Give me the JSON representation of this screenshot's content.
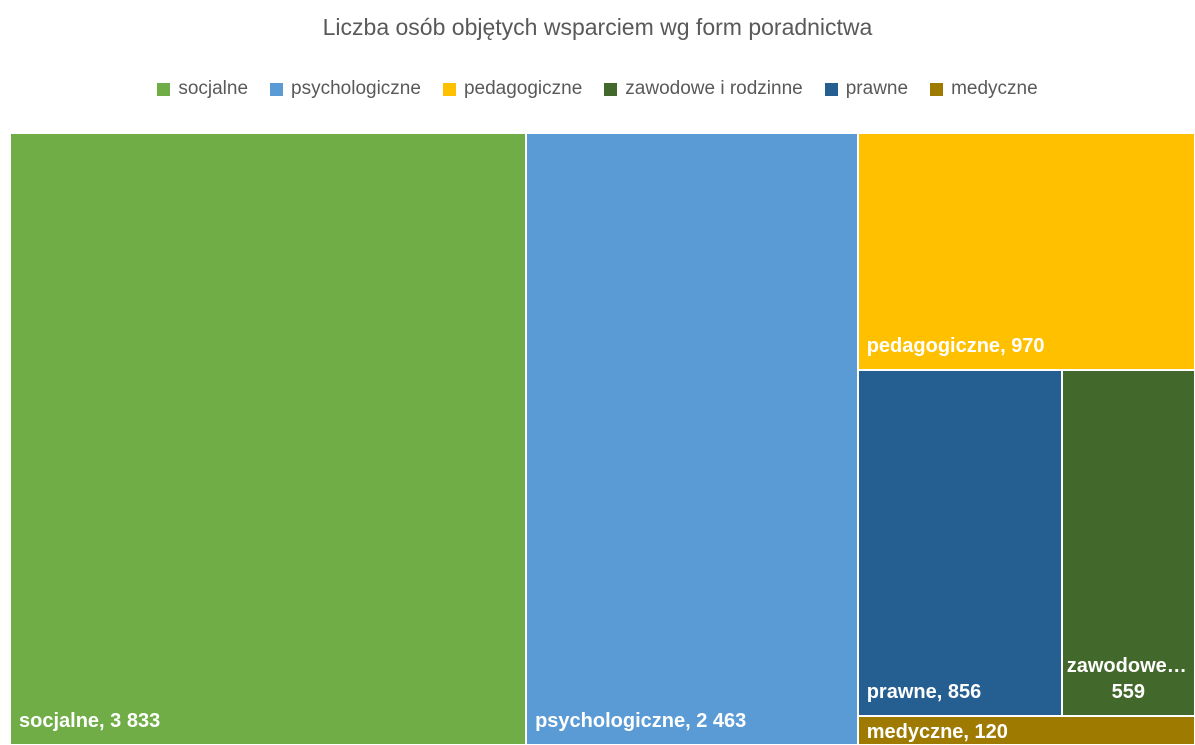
{
  "chart_data": {
    "type": "treemap",
    "title": "Liczba osób objętych wsparciem wg form poradnictwa",
    "categories": [
      "socjalne",
      "psychologiczne",
      "pedagogiczne",
      "zawodowe i rodzinne",
      "prawne",
      "medyczne"
    ],
    "values": [
      3833,
      2463,
      970,
      559,
      856,
      120
    ],
    "value_labels": [
      "3 833",
      "2 463",
      "970",
      "559",
      "856",
      "120"
    ],
    "colors": [
      "#70ad47",
      "#5b9bd5",
      "#ffc000",
      "#43682b",
      "#255e91",
      "#9e7a00"
    ],
    "legend": "top"
  }
}
